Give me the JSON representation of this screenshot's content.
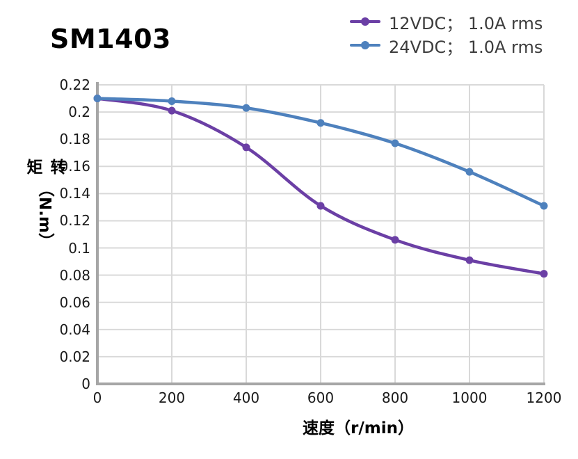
{
  "page": {
    "title": "SM1403"
  },
  "legend": {
    "position": "top-right",
    "items": [
      {
        "label": "12VDC； 1.0A rms",
        "color": "#6B3FA5",
        "marker": "circle-on-line-icon"
      },
      {
        "label": "24VDC； 1.0A rms",
        "color": "#4E81BD",
        "marker": "circle-on-line-icon"
      }
    ]
  },
  "chart_data": {
    "type": "line",
    "title": "SM1403",
    "x": [
      0,
      200,
      400,
      600,
      800,
      1000,
      1200
    ],
    "series": [
      {
        "name": "12VDC； 1.0A rms",
        "color": "#6B3FA5",
        "values": [
          0.21,
          0.201,
          0.174,
          0.131,
          0.106,
          0.091,
          0.081
        ]
      },
      {
        "name": "24VDC； 1.0A rms",
        "color": "#4E81BD",
        "values": [
          0.21,
          0.208,
          0.203,
          0.192,
          0.177,
          0.156,
          0.131
        ]
      }
    ],
    "xlabel": "速度（r/min）",
    "ylabel_cn": "转矩",
    "ylabel_unit": "（N.m）",
    "xlim": [
      0,
      1200
    ],
    "ylim": [
      0,
      0.22
    ],
    "xticks": [
      0,
      200,
      400,
      600,
      800,
      1000,
      1200
    ],
    "yticks": [
      0,
      0.02,
      0.04,
      0.06,
      0.08,
      0.1,
      0.12,
      0.14,
      0.16,
      0.18,
      0.2,
      0.22
    ],
    "grid": true,
    "smooth": true,
    "colors": {
      "grid": "#D9D9D9",
      "axis": "#A6A6A6"
    }
  }
}
